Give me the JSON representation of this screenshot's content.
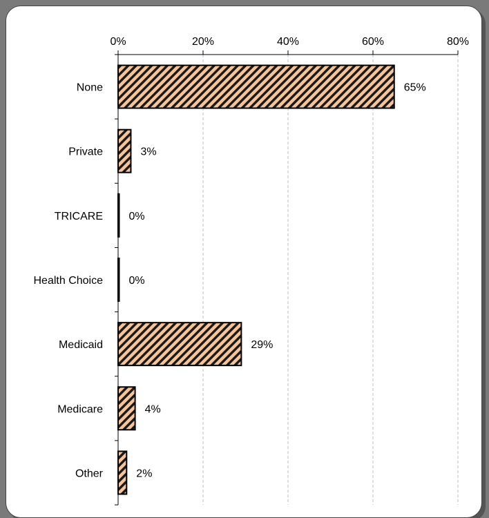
{
  "chart_data": {
    "type": "bar",
    "orientation": "horizontal",
    "categories": [
      "None",
      "Private",
      "TRICARE",
      "Health Choice",
      "Medicaid",
      "Medicare",
      "Other"
    ],
    "values": [
      65,
      3,
      0,
      0,
      29,
      4,
      2
    ],
    "value_labels": [
      "65%",
      "3%",
      "0%",
      "0%",
      "29%",
      "4%",
      "2%"
    ],
    "x_ticks": [
      "0%",
      "20%",
      "40%",
      "60%",
      "80%"
    ],
    "xlim": [
      0,
      80
    ],
    "x_axis_position": "top",
    "grid": true,
    "legend": false,
    "bar_fill": "#f7c49a",
    "bar_hatch": "#1a1a1a",
    "bar_stroke": "#000000"
  }
}
